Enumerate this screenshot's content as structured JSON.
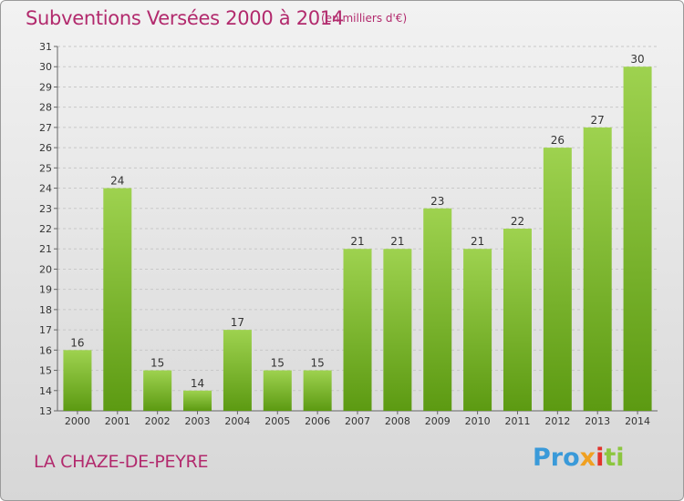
{
  "title": "Subventions Versées 2000 à 2014",
  "subtitle": "(en milliers d'€)",
  "commune": "LA CHAZE-DE-PEYRE",
  "logo": {
    "p1": "Pro",
    "p2": "x",
    "p3": "i",
    "p4": "ti"
  },
  "colors": {
    "title": "#b22a6d",
    "bar_top": "#9ed24f",
    "bar_bottom": "#5c9a12",
    "grid": "#c8c8c8"
  },
  "chart_data": {
    "type": "bar",
    "categories": [
      "2000",
      "2001",
      "2002",
      "2003",
      "2004",
      "2005",
      "2006",
      "2007",
      "2008",
      "2009",
      "2010",
      "2011",
      "2012",
      "2013",
      "2014"
    ],
    "values": [
      16,
      24,
      15,
      14,
      17,
      15,
      15,
      21,
      21,
      23,
      21,
      22,
      26,
      27,
      30
    ],
    "ylim": [
      13,
      31
    ],
    "yticks": [
      13,
      14,
      15,
      16,
      17,
      18,
      19,
      20,
      21,
      22,
      23,
      24,
      25,
      26,
      27,
      28,
      29,
      30,
      31
    ],
    "grid": true
  }
}
